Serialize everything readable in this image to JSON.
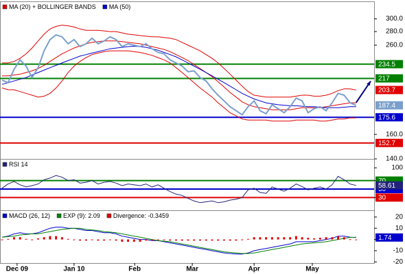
{
  "chart_data": [
    {
      "type": "line",
      "log_scale": true,
      "ylim": [
        140,
        330
      ],
      "xlim": [
        0,
        62
      ],
      "yticks": [
        {
          "value": 140,
          "label": "140.0"
        },
        {
          "value": 160,
          "label": "160.0"
        },
        {
          "value": 260,
          "label": "260.0"
        },
        {
          "value": 280,
          "label": "280.0"
        },
        {
          "value": 300,
          "label": "300.0"
        }
      ],
      "levels": [
        {
          "value": 234.5,
          "color": "#008000"
        },
        {
          "value": 217,
          "color": "#008000"
        },
        {
          "value": 175.6,
          "color": "#0000cc"
        },
        {
          "value": 152.7,
          "color": "#e00000"
        }
      ],
      "series": [
        {
          "color": "#e00000",
          "width": 1,
          "end_label": true,
          "values": [
            236,
            236,
            238,
            242,
            248,
            256,
            266,
            276,
            284,
            288,
            290,
            289,
            287,
            284,
            282,
            282,
            282,
            281,
            280,
            280,
            278,
            276,
            275,
            274,
            273,
            272,
            272,
            271,
            270,
            268,
            264,
            260,
            256,
            252,
            247,
            242,
            236,
            229,
            222,
            215,
            208,
            202,
            198,
            197,
            196,
            196,
            196,
            196,
            196,
            197,
            198,
            198,
            197,
            197,
            198,
            200,
            203,
            205,
            205,
            203.7
          ]
        },
        {
          "color": "#e00000",
          "width": 1,
          "values": [
            206,
            204,
            204,
            202,
            200,
            198,
            196,
            197,
            200,
            206,
            214,
            224,
            232,
            238,
            243,
            247,
            249,
            251,
            252,
            252,
            252,
            252,
            251,
            250,
            248,
            246,
            243,
            240,
            236,
            230,
            224,
            218,
            212,
            206,
            201,
            196,
            190,
            185,
            180,
            177,
            174,
            173,
            173,
            173,
            173,
            172,
            172,
            172,
            172,
            173,
            173,
            173,
            173,
            172,
            172,
            173,
            174,
            174,
            175,
            175
          ]
        },
        {
          "name": "MA (20) + BOLLINGER BANDS",
          "color": "#e00000",
          "width": 1,
          "values": [
            220,
            220,
            221,
            222,
            224,
            226,
            229,
            233,
            238,
            243,
            248,
            252,
            256,
            259,
            262,
            264,
            265,
            266,
            266,
            266,
            265,
            264,
            263,
            262,
            260,
            258,
            256,
            254,
            251,
            247,
            243,
            239,
            234,
            229,
            224,
            219,
            213,
            207,
            201,
            196,
            191,
            188,
            186,
            185,
            184,
            183,
            183,
            183,
            183,
            184,
            185,
            185,
            185,
            185,
            186,
            187,
            188,
            189,
            190,
            190
          ]
        },
        {
          "name": "MA (50)",
          "color": "#0000cc",
          "width": 1,
          "values": [
            210,
            212,
            214,
            216,
            218,
            221,
            224,
            227,
            230,
            233,
            236,
            239,
            242,
            245,
            247,
            249,
            251,
            253,
            255,
            256,
            257,
            258,
            258.5,
            258,
            257,
            255,
            253,
            250,
            247,
            244,
            240,
            236,
            232,
            228,
            224,
            220,
            216,
            212,
            208,
            204,
            200,
            197,
            194,
            192,
            190,
            189,
            188,
            187.5,
            187,
            187,
            186.5,
            186,
            186,
            185.5,
            185,
            185,
            185,
            185.5,
            186,
            186
          ]
        },
        {
          "color": "#7a9fcc",
          "width": 2,
          "end_label": true,
          "values": [
            215,
            212,
            228,
            240,
            232,
            218,
            230,
            252,
            268,
            275,
            272,
            262,
            268,
            258,
            262,
            270,
            262,
            266,
            272,
            268,
            258,
            262,
            260,
            258,
            262,
            255,
            250,
            248,
            240,
            236,
            232,
            225,
            226,
            218,
            214,
            205,
            198,
            192,
            186,
            182,
            178,
            186,
            192,
            182,
            179,
            188,
            184,
            180,
            186,
            195,
            192,
            180,
            184,
            186,
            182,
            190,
            200,
            198,
            190,
            187.4
          ]
        }
      ]
    },
    {
      "type": "line",
      "ylim": [
        0,
        121
      ],
      "xlim": [
        0,
        62
      ],
      "yticks": [
        30,
        70,
        100
      ],
      "levels": [
        {
          "value": 70,
          "color": "#008000"
        },
        {
          "value": 50,
          "color": "#0000cc"
        },
        {
          "value": 30,
          "color": "#e00000"
        }
      ],
      "series": [
        {
          "name": "RSI 14",
          "color": "#22227a",
          "width": 1,
          "end_label": true,
          "values": [
            52,
            62,
            68,
            60,
            55,
            58,
            62,
            72,
            76,
            82,
            78,
            70,
            72,
            64,
            66,
            70,
            62,
            66,
            68,
            64,
            58,
            62,
            60,
            58,
            62,
            55,
            60,
            52,
            44,
            38,
            35,
            28,
            22,
            18,
            20,
            22,
            18,
            20,
            24,
            26,
            30,
            48,
            52,
            42,
            40,
            55,
            50,
            45,
            52,
            62,
            56,
            48,
            52,
            55,
            50,
            60,
            80,
            72,
            62,
            58.61
          ]
        }
      ]
    },
    {
      "type": "line",
      "ylim": [
        -21,
        26
      ],
      "xlim": [
        0,
        62
      ],
      "yticks": [
        -20,
        -10,
        0,
        10,
        20
      ],
      "xticks": [
        {
          "value": 2.5,
          "label": "Dec 09"
        },
        {
          "value": 12,
          "label": "Jan 10"
        },
        {
          "value": 22.1,
          "label": "Feb"
        },
        {
          "value": 31.7,
          "label": "Mar"
        },
        {
          "value": 42,
          "label": "Apr"
        },
        {
          "value": 51.7,
          "label": "May"
        }
      ],
      "series": [
        {
          "name": "MACD (26, 12)",
          "color": "#0000cc",
          "width": 1,
          "end_label": true,
          "values": [
            2,
            3,
            5,
            6,
            5,
            5,
            6,
            8,
            10,
            11,
            11,
            10,
            10,
            9,
            8,
            8,
            7,
            6,
            6,
            5,
            3,
            2,
            1,
            0,
            0,
            -1,
            -1,
            -2,
            -3,
            -4,
            -5,
            -6,
            -7,
            -8,
            -9,
            -10,
            -11,
            -12,
            -12.5,
            -13,
            -13,
            -12,
            -10,
            -9,
            -8,
            -7,
            -6,
            -5,
            -4,
            -2,
            -2,
            -2,
            -2,
            -1,
            0,
            1,
            3,
            3,
            2,
            1.74
          ]
        },
        {
          "name": "EXP (9): 2.09",
          "color": "#008000",
          "width": 1,
          "values": [
            2,
            2.5,
            3,
            4,
            4.5,
            5,
            5,
            6,
            7,
            8,
            9,
            9.5,
            10,
            10,
            9,
            8.5,
            8,
            7,
            6.5,
            6,
            5,
            4,
            3,
            2,
            1,
            0,
            -1,
            -1.5,
            -2,
            -3,
            -4,
            -5,
            -6,
            -7,
            -8,
            -9,
            -10,
            -11,
            -11.5,
            -12,
            -12.5,
            -12.5,
            -12,
            -11,
            -10,
            -9,
            -8,
            -7,
            -6,
            -5,
            -4,
            -3.5,
            -3,
            -2.5,
            -2,
            -1,
            0,
            1,
            1.8,
            2.09
          ]
        },
        {
          "name": "Divergence: -0.3459",
          "color": "#e00000",
          "kind": "bar",
          "values": [
            0,
            0.5,
            2,
            2,
            0.5,
            0,
            1,
            2,
            3,
            3,
            2,
            0.5,
            0,
            -1,
            -1,
            -0.5,
            -1,
            -1,
            -0.5,
            -1,
            -2,
            -2,
            -2,
            -2,
            -1,
            -1,
            0,
            -0.5,
            -1,
            -1,
            -1,
            -1,
            -1,
            -1,
            -1,
            -1,
            -1,
            -1,
            -1,
            -1,
            -0.5,
            0.5,
            2,
            2,
            2,
            2,
            2,
            2,
            2,
            3,
            2,
            1.5,
            1,
            1.5,
            2,
            2,
            3,
            2,
            0.2,
            -0.3459
          ]
        }
      ]
    }
  ]
}
